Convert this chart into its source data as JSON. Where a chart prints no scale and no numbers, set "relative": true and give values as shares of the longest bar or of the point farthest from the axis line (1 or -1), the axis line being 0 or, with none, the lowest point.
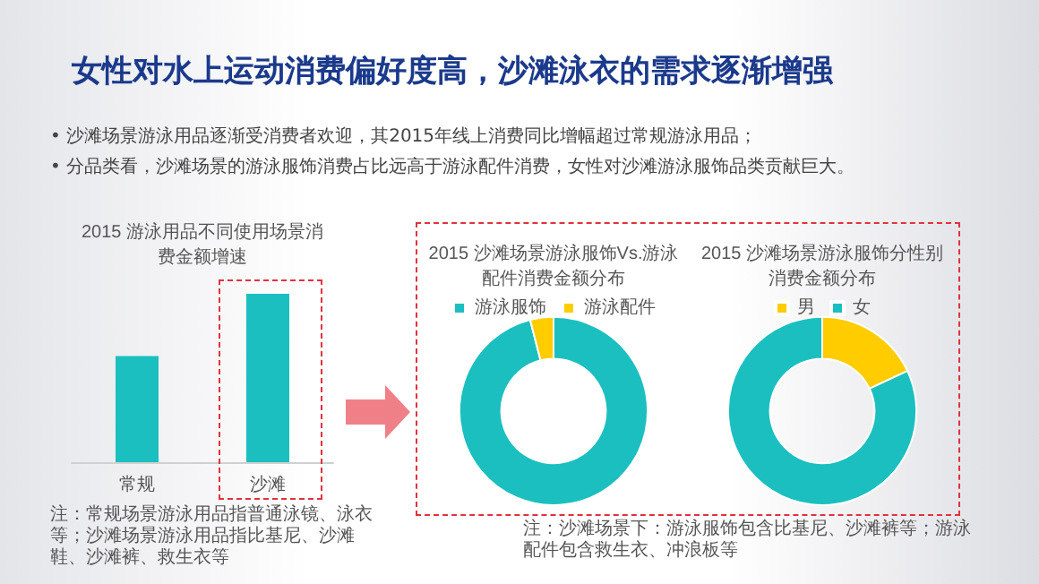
{
  "chart_data": [
    {
      "type": "other",
      "title": "女性对水上运动消费偏好度高，沙滩泳衣的需求逐渐增强",
      "annotations": [
        "•  沙滩场景游泳用品逐渐受消费者欢迎，其2015年线上消费同比增幅超过常规游泳用品；",
        "•  分品类看，沙滩场景的游泳服饰消费占比远高于游泳配件消费，女性对沙滩游泳服饰品类贡献巨大。"
      ]
    },
    {
      "type": "bar",
      "title": "2015 游泳用品不同使用场景消费金额增速",
      "categories": [
        "常规",
        "沙滩"
      ],
      "values": [
        0.63,
        1
      ],
      "color": "#1bbfbf",
      "relative": true,
      "annotations": [
        "注：常规场景游泳用品指普通泳镜、泳衣等；沙滩场景游泳用品指比基尼、沙滩鞋、沙滩裤、救生衣等"
      ]
    },
    {
      "type": "donut",
      "title": "2015 沙滩场景游泳服饰Vs.游泳配件消费金额分布",
      "categories": [
        "游泳服饰",
        "游泳配件"
      ],
      "values": [
        96,
        4
      ],
      "colors": [
        "#1bbfbf",
        "#ffcc00"
      ],
      "legend": "top",
      "annotations": [
        "注：沙滩场景下：游泳服饰包含比基尼、沙滩裤等；游泳配件包含救生衣、冲浪板等"
      ]
    },
    {
      "type": "donut",
      "title": "2015 沙滩场景游泳服饰分性别消费金额分布",
      "categories": [
        "男",
        "女"
      ],
      "values": [
        18,
        82
      ],
      "colors": [
        "#ffcc00",
        "#1bbfbf"
      ],
      "legend": "top"
    }
  ]
}
